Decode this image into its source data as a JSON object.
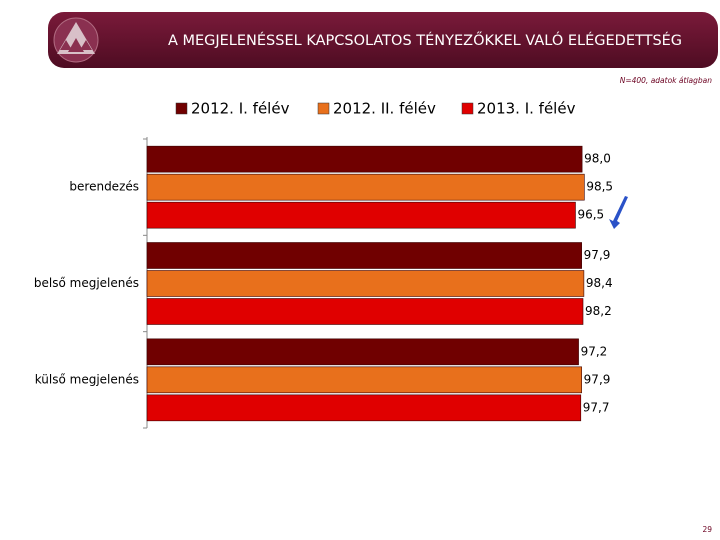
{
  "chart_data": {
    "type": "bar",
    "orientation": "horizontal",
    "title": "A MEGJELENÉSSEL KAPCSOLATOS TÉNYEZŐKKEL VALÓ ELÉGEDETTSÉG",
    "note": "N=400, adatok átlagban",
    "categories": [
      "berendezés",
      "belső megjelenés",
      "külső megjelenés"
    ],
    "xlim": [
      0,
      100
    ],
    "series": [
      {
        "name": "2012. I. félév",
        "color": "#700000",
        "values": [
          98.0,
          97.9,
          97.2
        ],
        "value_labels": [
          "98,0",
          "97,9",
          "97,2"
        ]
      },
      {
        "name": "2012. II. félév",
        "color": "#e8701c",
        "values": [
          98.5,
          98.4,
          97.9
        ],
        "value_labels": [
          "98,5",
          "98,4",
          "97,9"
        ]
      },
      {
        "name": "2013. I. félév",
        "color": "#e00000",
        "values": [
          96.5,
          98.2,
          97.7
        ],
        "value_labels": [
          "96,5",
          "98,2",
          "97,7"
        ]
      }
    ]
  },
  "page_number": "29"
}
